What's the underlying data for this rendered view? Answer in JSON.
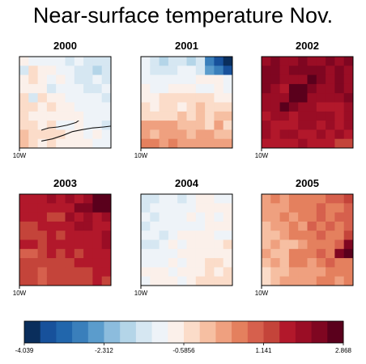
{
  "title": "Near-surface temperature Nov.",
  "chart_data": {
    "type": "heatmap",
    "title": "Near-surface temperature Nov.",
    "panels": [
      {
        "label": "2000",
        "base": -0.9,
        "gx": -0.1,
        "gy": 0.05,
        "spots": [
          {
            "c": 0,
            "r": 1,
            "v": -1.5
          },
          {
            "c": 1,
            "r": 4,
            "v": -1.4
          },
          {
            "c": 3,
            "r": 3,
            "v": -1.3
          }
        ]
      },
      {
        "label": "2001",
        "base": -0.55,
        "gx": 0.0,
        "gy": 0.2,
        "spots": [
          {
            "c": 9,
            "r": 0,
            "v": -3.9
          },
          {
            "c": 8,
            "r": 0,
            "v": -3.4
          },
          {
            "c": 9,
            "r": 1,
            "v": -3.4
          },
          {
            "c": 7,
            "r": 0,
            "v": -2.9
          },
          {
            "c": 8,
            "r": 1,
            "v": -3.0
          },
          {
            "c": 7,
            "r": 1,
            "v": -2.4
          },
          {
            "c": 0,
            "r": 9,
            "v": 0.7
          },
          {
            "c": 1,
            "r": 9,
            "v": 0.6
          }
        ]
      },
      {
        "label": "2002",
        "base": 2.0,
        "gx": 0.0,
        "gy": -0.05,
        "spots": [
          {
            "c": 3,
            "r": 3,
            "v": 2.85
          },
          {
            "c": 4,
            "r": 3,
            "v": 2.85
          },
          {
            "c": 3,
            "r": 4,
            "v": 2.8
          },
          {
            "c": 4,
            "r": 4,
            "v": 2.8
          },
          {
            "c": 5,
            "r": 2,
            "v": 2.75
          },
          {
            "c": 2,
            "r": 5,
            "v": 2.7
          },
          {
            "c": 9,
            "r": 9,
            "v": 1.2
          },
          {
            "c": 8,
            "r": 9,
            "v": 1.3
          }
        ]
      },
      {
        "label": "2003",
        "base": 1.55,
        "gx": 0.05,
        "gy": -0.06,
        "spots": [
          {
            "c": 9,
            "r": 0,
            "v": 2.8
          },
          {
            "c": 8,
            "r": 0,
            "v": 2.7
          },
          {
            "c": 9,
            "r": 1,
            "v": 2.6
          },
          {
            "c": 7,
            "r": 1,
            "v": 2.5
          },
          {
            "c": 8,
            "r": 1,
            "v": 2.6
          },
          {
            "c": 6,
            "r": 1,
            "v": 2.3
          }
        ]
      },
      {
        "label": "2004",
        "base": -0.95,
        "gx": 0.05,
        "gy": 0.04,
        "spots": [
          {
            "c": 1,
            "r": 5,
            "v": -1.6
          },
          {
            "c": 2,
            "r": 4,
            "v": -1.5
          },
          {
            "c": 8,
            "r": 1,
            "v": -0.6
          }
        ]
      },
      {
        "label": "2005",
        "base": 0.5,
        "gx": 0.1,
        "gy": -0.04,
        "spots": [
          {
            "c": 9,
            "r": 6,
            "v": 2.6
          },
          {
            "c": 9,
            "r": 5,
            "v": 2.3
          },
          {
            "c": 8,
            "r": 6,
            "v": 2.2
          },
          {
            "c": 2,
            "r": 5,
            "v": 0.0
          },
          {
            "c": 3,
            "r": 5,
            "v": 0.0
          }
        ]
      }
    ],
    "x_tick_label": "10W",
    "colorbar": {
      "min": -4.039,
      "max": 2.868,
      "bins": 20,
      "tick_labels": [
        "-4.039",
        "-2.312",
        "-0.5856",
        "1.141",
        "2.868"
      ],
      "colors": [
        "#0a2e5c",
        "#17519b",
        "#2166ac",
        "#3a7fbb",
        "#5b9ccc",
        "#8cbcdd",
        "#b4d5e8",
        "#d6e7f2",
        "#eef3f8",
        "#fbf0ea",
        "#fbdcc9",
        "#f6bfa2",
        "#efa07f",
        "#e4805e",
        "#d6604d",
        "#c4443a",
        "#b2182b",
        "#9a0d25",
        "#7f0621",
        "#5a001c"
      ]
    }
  }
}
